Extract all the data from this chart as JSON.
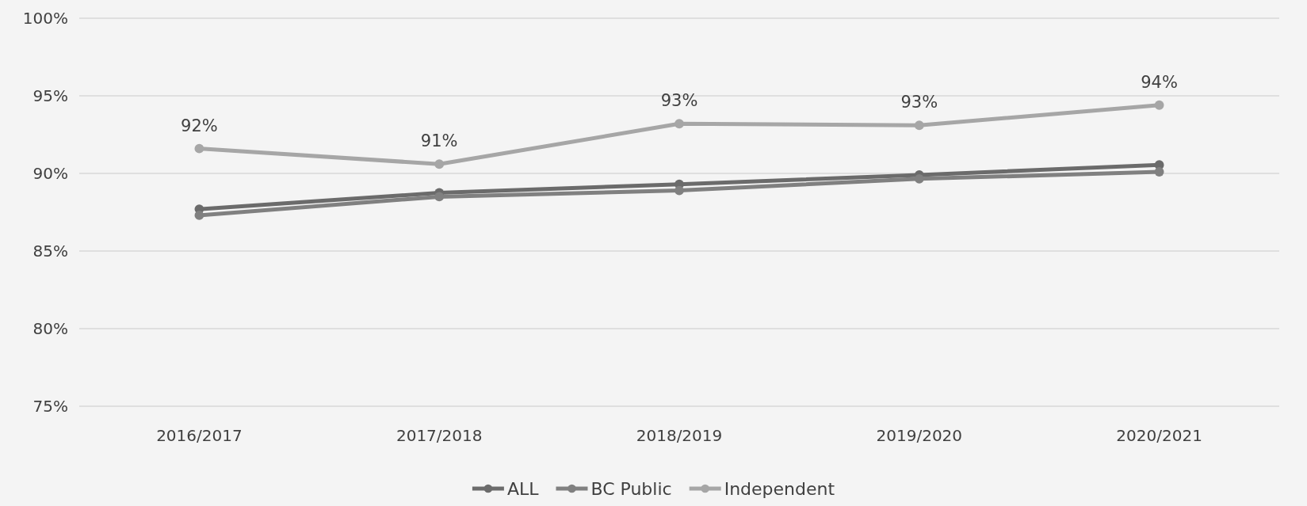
{
  "chart_data": {
    "type": "line",
    "categories": [
      "2016/2017",
      "2017/2018",
      "2018/2019",
      "2019/2020",
      "2020/2021"
    ],
    "series": [
      {
        "name": "ALL",
        "color": "#6b6b6b",
        "values": [
          87.7,
          88.75,
          89.3,
          89.9,
          90.55
        ]
      },
      {
        "name": "BC Public",
        "color": "#808080",
        "values": [
          87.3,
          88.5,
          88.9,
          89.65,
          90.1
        ]
      },
      {
        "name": "Independent",
        "color": "#a6a6a6",
        "values": [
          91.6,
          90.6,
          93.2,
          93.1,
          94.4
        ],
        "value_labels": [
          "92%",
          "91%",
          "93%",
          "93%",
          "94%"
        ]
      }
    ],
    "ylim": [
      75,
      100
    ],
    "yticks": [
      {
        "value": 75,
        "label": "75%"
      },
      {
        "value": 80,
        "label": "80%"
      },
      {
        "value": 85,
        "label": "85%"
      },
      {
        "value": 90,
        "label": "90%"
      },
      {
        "value": 95,
        "label": "95%"
      },
      {
        "value": 100,
        "label": "100%"
      }
    ],
    "grid": "y",
    "legend": "bottom",
    "marker": "circle",
    "line_style": "solid"
  }
}
